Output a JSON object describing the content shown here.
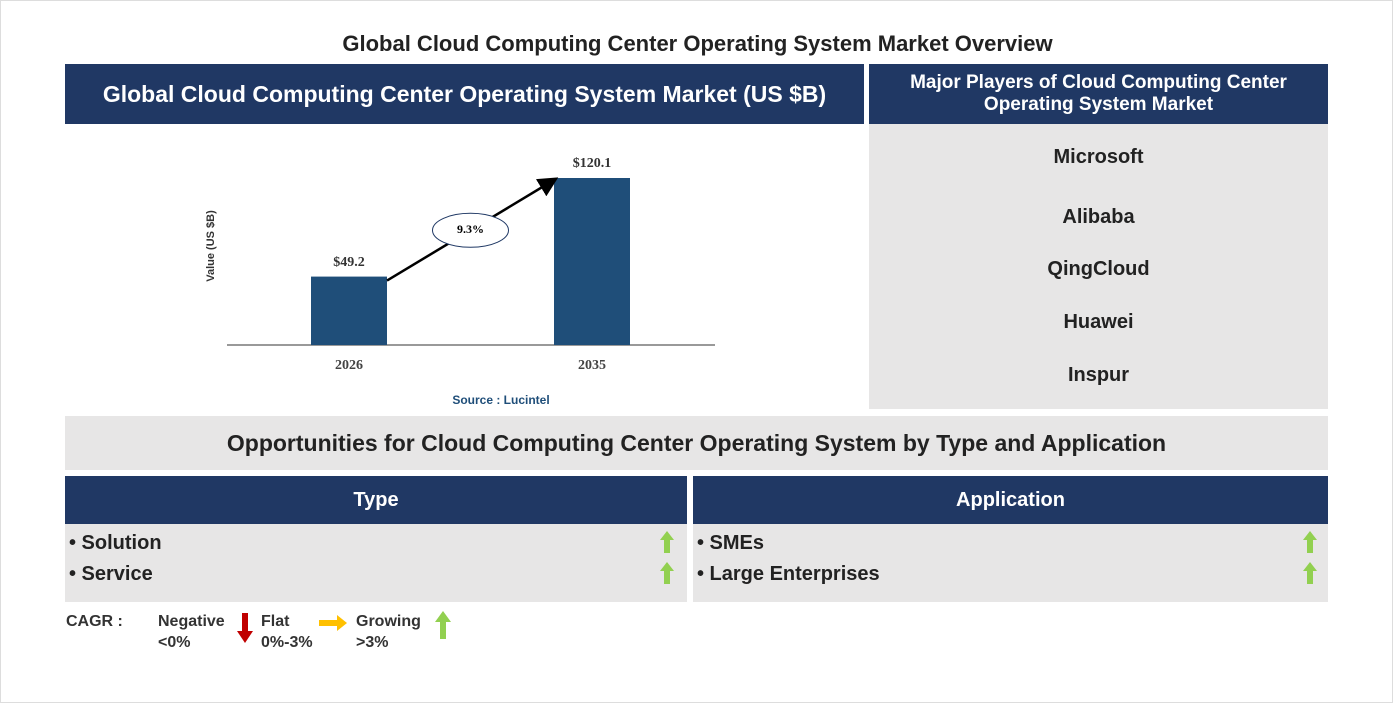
{
  "title": "Global Cloud Computing Center Operating System Market Overview",
  "chart_panel": {
    "header": "Global Cloud Computing Center Operating System Market (US $B)",
    "source": "Source : Lucintel"
  },
  "chart_data": {
    "type": "bar",
    "y_label": "Value (US $B)",
    "categories": [
      "2026",
      "2035"
    ],
    "values": [
      49.2,
      120.1
    ],
    "value_labels": [
      "$49.2",
      "$120.1"
    ],
    "color": "#1f4e79",
    "cagr_label": "9.3%"
  },
  "players": {
    "header": "Major Players of Cloud Computing Center Operating System Market",
    "items": [
      "Microsoft",
      "Alibaba",
      "QingCloud",
      "Huawei",
      "Inspur"
    ]
  },
  "opportunities": {
    "title": "Opportunities for Cloud Computing Center Operating System by Type and Application",
    "type": {
      "header": "Type",
      "items": [
        "• Solution",
        "• Service"
      ]
    },
    "application": {
      "header": "Application",
      "items": [
        "• SMEs",
        "• Large Enterprises"
      ]
    }
  },
  "legend": {
    "title": "CAGR :",
    "negative": [
      "Negative",
      "<0%"
    ],
    "flat": [
      "Flat",
      "0%-3%"
    ],
    "growing": [
      "Growing",
      ">3%"
    ]
  }
}
